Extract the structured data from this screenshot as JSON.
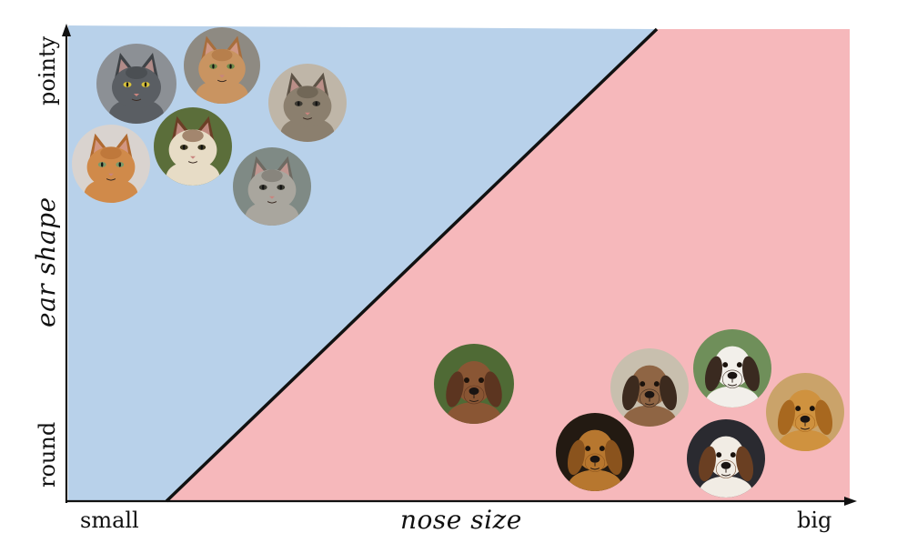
{
  "axes": {
    "x_title": "nose size",
    "x_low": "small",
    "x_high": "big",
    "y_title": "ear shape",
    "y_low": "round",
    "y_high": "pointy"
  },
  "regions": {
    "cat_color": "#b8d1ea",
    "dog_color": "#f6b8bb",
    "boundary_color": "#111111"
  },
  "animals": {
    "cats": [
      {
        "id": "gray-cat",
        "fur": "#5a5e63",
        "accent": "#3f4347",
        "bg": "#8c9095",
        "eye": "#d8c23a"
      },
      {
        "id": "orange-tabby-cat",
        "fur": "#c99461",
        "accent": "#a86e3d",
        "bg": "#8e8a82",
        "eye": "#6e8a4a"
      },
      {
        "id": "tabby-cat-right",
        "fur": "#8b7f6e",
        "accent": "#5d5346",
        "bg": "#bfb6a8",
        "eye": "#3d3a33"
      },
      {
        "id": "orange-kitten",
        "fur": "#d08a4a",
        "accent": "#b06a30",
        "bg": "#d9d3cf",
        "eye": "#7a9a6b"
      },
      {
        "id": "calico-cat",
        "fur": "#e7dcc6",
        "accent": "#6b3f26",
        "bg": "#5b6e3a",
        "eye": "#3f3a22"
      },
      {
        "id": "gray-white-cat",
        "fur": "#a9a69e",
        "accent": "#6e6a62",
        "bg": "#7f8a85",
        "eye": "#3a3a32"
      }
    ],
    "dogs": [
      {
        "id": "puppy",
        "fur": "#8a5634",
        "accent": "#5c3520",
        "bg": "#4f6a35",
        "eye": "#1d120b"
      },
      {
        "id": "dachshund",
        "fur": "#8f6544",
        "accent": "#3c2a1e",
        "bg": "#c8bfae",
        "eye": "#1a120c"
      },
      {
        "id": "tricolor-dog",
        "fur": "#f2efea",
        "accent": "#3a2a20",
        "bg": "#6f8f5a",
        "eye": "#1a120c"
      },
      {
        "id": "golden-dog",
        "fur": "#cf923f",
        "accent": "#a8681f",
        "bg": "#caa36a",
        "eye": "#1a120c"
      },
      {
        "id": "cocker-spaniel",
        "fur": "#b7772f",
        "accent": "#8a531d",
        "bg": "#231a12",
        "eye": "#1a120c"
      },
      {
        "id": "beagle",
        "fur": "#f1ece4",
        "accent": "#6a3f22",
        "bg": "#2a2a30",
        "eye": "#1a120c"
      }
    ]
  }
}
